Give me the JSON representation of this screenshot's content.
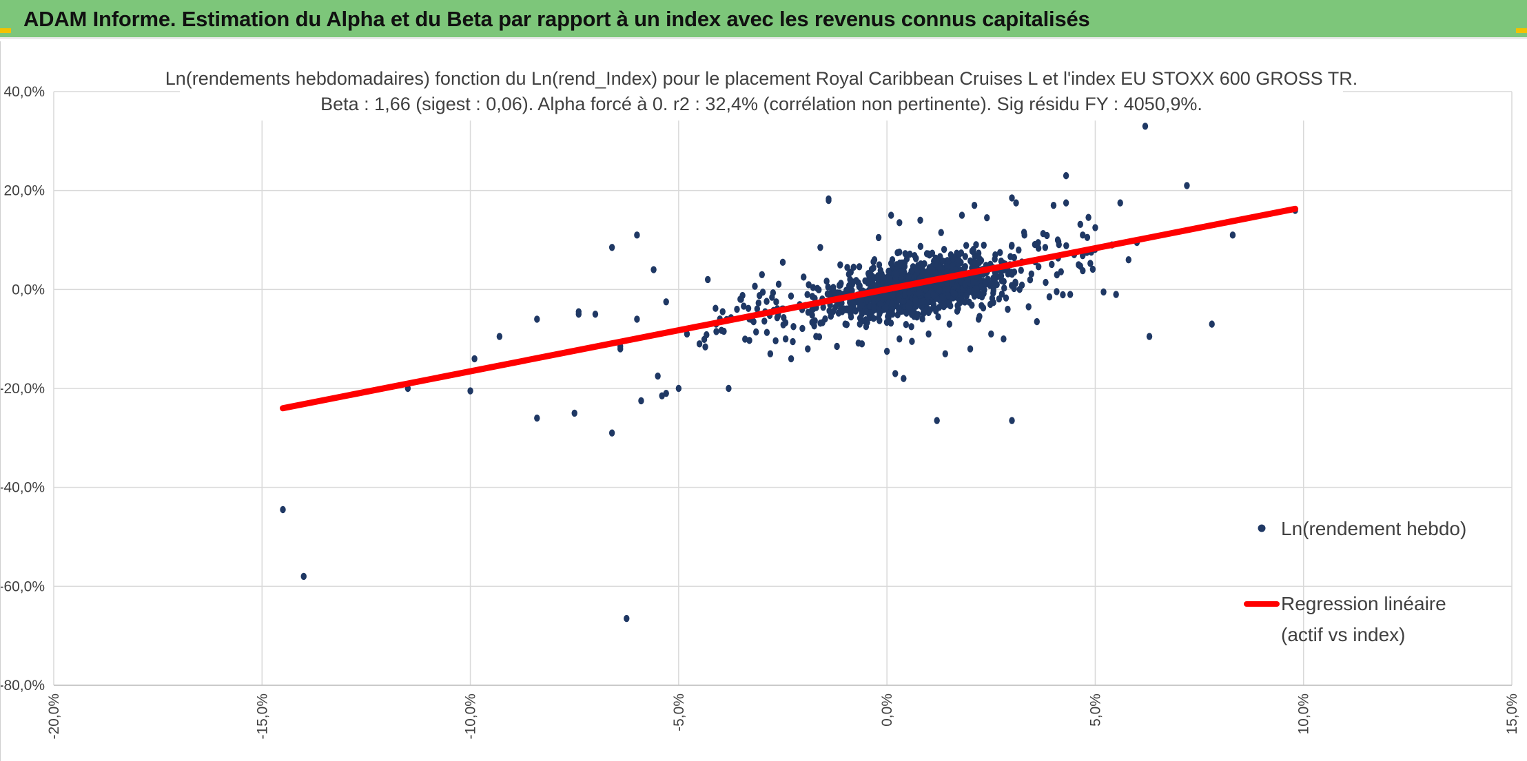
{
  "header": {
    "title": "ADAM Informe. Estimation du Alpha et du Beta par rapport à un index avec les revenus connus capitalisés"
  },
  "colors": {
    "header_bg": "#7dc67a",
    "accent_corner": "#f2c200",
    "points": "#1f3864",
    "regression": "#ff0000",
    "grid": "#d9d9d9"
  },
  "chart_data": {
    "type": "scatter",
    "title_line1": "Ln(rendements hebdomadaires) fonction du Ln(rend_Index) pour le placement Royal Caribbean Cruises L et l'index EU STOXX 600 GROSS TR.",
    "title_line2": "Beta : 1,66 (sigest : 0,06). Alpha forcé à 0. r2 : 32,4% (corrélation non pertinente). Sig résidu FY : 4050,9%.",
    "xlim": [
      -20,
      15
    ],
    "ylim": [
      -80,
      40
    ],
    "x_ticks": [
      "-20,0%",
      "-15,0%",
      "-10,0%",
      "-5,0%",
      "0,0%",
      "5,0%",
      "10,0%",
      "15,0%"
    ],
    "y_ticks": [
      "40,0%",
      "20,0%",
      "0,0%",
      "-20,0%",
      "-40,0%",
      "-60,0%",
      "-80,0%"
    ],
    "grid": true,
    "legend_position": "right",
    "beta": 1.66,
    "series": [
      {
        "name": "Ln(rendement hebdo)",
        "kind": "points",
        "points": [
          [
            -14.5,
            -44.5
          ],
          [
            -14.0,
            -58.0
          ],
          [
            -11.5,
            -20.0
          ],
          [
            -10.0,
            -20.5
          ],
          [
            -9.9,
            -14.0
          ],
          [
            -9.3,
            -9.5
          ],
          [
            -8.4,
            -26.0
          ],
          [
            -8.4,
            -6.0
          ],
          [
            -7.5,
            -25.0
          ],
          [
            -7.4,
            -5.0
          ],
          [
            -7.4,
            -4.5
          ],
          [
            -7.0,
            -5.0
          ],
          [
            -6.6,
            -29.0
          ],
          [
            -6.6,
            8.5
          ],
          [
            -6.4,
            -11.5
          ],
          [
            -6.4,
            -12.0
          ],
          [
            -6.25,
            -66.5
          ],
          [
            -6.0,
            11.0
          ],
          [
            -6.0,
            -6.0
          ],
          [
            -5.9,
            -22.5
          ],
          [
            -5.6,
            4.0
          ],
          [
            -5.5,
            -17.5
          ],
          [
            -5.4,
            -21.5
          ],
          [
            -5.3,
            -21.0
          ],
          [
            -5.3,
            -2.5
          ],
          [
            -5.0,
            -20.0
          ],
          [
            -4.8,
            -9.0
          ],
          [
            -4.5,
            -11.0
          ],
          [
            -4.3,
            2.0
          ],
          [
            -4.1,
            -7.0
          ],
          [
            -3.8,
            -20.0
          ],
          [
            -3.6,
            -4.0
          ],
          [
            -3.5,
            -2.0
          ],
          [
            -3.2,
            -6.5
          ],
          [
            -3.0,
            3.0
          ],
          [
            -2.8,
            -13.0
          ],
          [
            -2.5,
            5.5
          ],
          [
            -2.3,
            -14.0
          ],
          [
            -2.0,
            2.5
          ],
          [
            -1.9,
            -12.0
          ],
          [
            -1.7,
            -9.5
          ],
          [
            -1.6,
            8.5
          ],
          [
            -1.4,
            18.0
          ],
          [
            -1.4,
            18.3
          ],
          [
            -1.2,
            -11.5
          ],
          [
            -1.0,
            -7.0
          ],
          [
            -0.8,
            4.5
          ],
          [
            -0.6,
            -11.0
          ],
          [
            -0.5,
            -7.5
          ],
          [
            -0.3,
            6.0
          ],
          [
            -0.2,
            10.5
          ],
          [
            0.0,
            -12.5
          ],
          [
            0.1,
            15.0
          ],
          [
            0.3,
            13.5
          ],
          [
            0.3,
            -10.0
          ],
          [
            0.2,
            -17.0
          ],
          [
            0.4,
            -18.0
          ],
          [
            0.6,
            -10.5
          ],
          [
            0.8,
            14.0
          ],
          [
            1.0,
            -9.0
          ],
          [
            1.2,
            -26.5
          ],
          [
            1.3,
            11.5
          ],
          [
            1.4,
            -13.0
          ],
          [
            1.5,
            -7.0
          ],
          [
            1.7,
            6.0
          ],
          [
            1.8,
            15.0
          ],
          [
            2.0,
            -12.0
          ],
          [
            2.1,
            17.0
          ],
          [
            2.2,
            -6.0
          ],
          [
            2.4,
            14.5
          ],
          [
            2.5,
            -9.0
          ],
          [
            2.6,
            7.0
          ],
          [
            2.8,
            -10.0
          ],
          [
            2.9,
            -4.0
          ],
          [
            3.0,
            -26.5
          ],
          [
            3.0,
            18.5
          ],
          [
            3.1,
            17.5
          ],
          [
            3.3,
            11.0
          ],
          [
            3.4,
            -3.5
          ],
          [
            3.6,
            -6.5
          ],
          [
            3.8,
            8.5
          ],
          [
            3.9,
            -1.5
          ],
          [
            4.0,
            17.0
          ],
          [
            4.1,
            10.0
          ],
          [
            4.3,
            17.5
          ],
          [
            4.3,
            23.0
          ],
          [
            4.4,
            -1.0
          ],
          [
            4.6,
            5.0
          ],
          [
            4.7,
            11.0
          ],
          [
            4.8,
            7.5
          ],
          [
            5.0,
            12.5
          ],
          [
            5.2,
            -0.5
          ],
          [
            5.4,
            9.0
          ],
          [
            5.5,
            -1.0
          ],
          [
            5.6,
            17.5
          ],
          [
            5.8,
            6.0
          ],
          [
            6.0,
            9.5
          ],
          [
            6.2,
            33.0
          ],
          [
            6.3,
            -9.5
          ],
          [
            7.2,
            21.0
          ],
          [
            7.8,
            -7.0
          ],
          [
            8.3,
            11.0
          ],
          [
            9.8,
            16.0
          ]
        ],
        "cluster_center": [
          0.8,
          0.5
        ]
      },
      {
        "name": "Regression linéaire (actif vs index)",
        "kind": "line",
        "x": [
          -14.5,
          9.8
        ],
        "y": [
          -24.0,
          16.3
        ]
      }
    ]
  },
  "legend": {
    "points_label": "Ln(rendement hebdo)",
    "line_label_1": "Regression linéaire",
    "line_label_2": "(actif vs index)"
  }
}
